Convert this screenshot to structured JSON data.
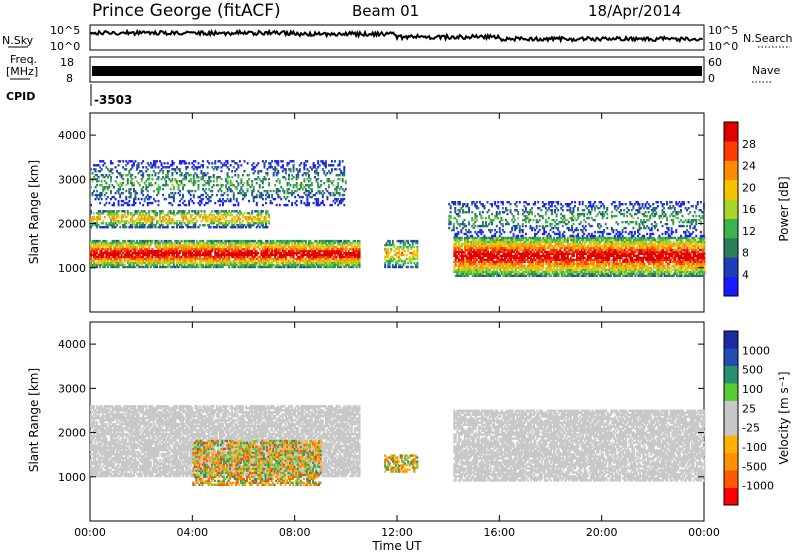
{
  "header": {
    "station": "Prince George (fitACF)",
    "beam": "Beam 01",
    "date": "18/Apr/2014"
  },
  "strips": {
    "nsky_label": "N.Sky",
    "nsky_ticks": [
      "10^5",
      "10^0"
    ],
    "nsearch_label": "N.Search",
    "nsearch_ticks": [
      "10^5",
      "10^0"
    ],
    "freq_label_1": "Freq.",
    "freq_label_2": "[MHz]",
    "freq_ticks": [
      "18",
      "8"
    ],
    "nave_label": "Nave",
    "nave_ticks": [
      "60",
      "0"
    ],
    "cpid_label": "CPID",
    "cpid_value": "-3503"
  },
  "colors": {
    "power": [
      "#1a1aff",
      "#1f3fb8",
      "#2e7d5a",
      "#3cb44b",
      "#aad42b",
      "#f5c400",
      "#ff8c00",
      "#ff3b00",
      "#e00000"
    ],
    "velocity": [
      "#ff0000",
      "#ff5a00",
      "#ff9000",
      "#ffb000",
      "#c8c8c8",
      "#c8c8c8",
      "#55cc33",
      "#2a8f6e",
      "#1f4fb0",
      "#1b2aa0"
    ],
    "ground_scatter": "#c8c8c8"
  },
  "chart_data": [
    {
      "type": "heatmap",
      "panel": "power",
      "ylabel": "Slant Range [km]",
      "xlabel": "",
      "xlim": [
        "00:00",
        "24:00"
      ],
      "ylim": [
        0,
        4500
      ],
      "y_ticks": [
        "1000",
        "2000",
        "3000",
        "4000"
      ],
      "x_ticks": [
        "00:00",
        "04:00",
        "08:00",
        "12:00",
        "16:00",
        "20:00",
        "00:00"
      ],
      "colorbar_label": "Power [dB]",
      "colorbar_ticks": [
        "4",
        "8",
        "12",
        "16",
        "20",
        "24",
        "28"
      ],
      "scatter_regions": [
        {
          "t": [
            0,
            10.5
          ],
          "r": [
            1000,
            1600
          ],
          "level": "strong"
        },
        {
          "t": [
            0,
            7
          ],
          "r": [
            1900,
            2300
          ],
          "level": "medium"
        },
        {
          "t": [
            0,
            10
          ],
          "r": [
            2400,
            3400
          ],
          "level": "weak"
        },
        {
          "t": [
            11.5,
            12.8
          ],
          "r": [
            1000,
            1600
          ],
          "level": "medium"
        },
        {
          "t": [
            14.2,
            24
          ],
          "r": [
            800,
            1700
          ],
          "level": "strong"
        },
        {
          "t": [
            14,
            24
          ],
          "r": [
            1700,
            2500
          ],
          "level": "weak"
        }
      ]
    },
    {
      "type": "heatmap",
      "panel": "velocity",
      "ylabel": "Slant Range [km]",
      "xlabel": "Time UT",
      "xlim": [
        "00:00",
        "24:00"
      ],
      "ylim": [
        0,
        4500
      ],
      "y_ticks": [
        "1000",
        "2000",
        "3000",
        "4000"
      ],
      "x_ticks": [
        "00:00",
        "04:00",
        "08:00",
        "12:00",
        "16:00",
        "20:00",
        "00:00"
      ],
      "colorbar_label": "Velocity [m s⁻¹]",
      "colorbar_ticks": [
        "1000",
        "500",
        "100",
        "25",
        "-25",
        "-100",
        "-500",
        "-1000"
      ],
      "scatter_regions": [
        {
          "t": [
            0,
            10.5
          ],
          "r": [
            1000,
            2600
          ],
          "type": "ground"
        },
        {
          "t": [
            4,
            9
          ],
          "r": [
            800,
            1800
          ],
          "type": "ionospheric"
        },
        {
          "t": [
            11.5,
            12.8
          ],
          "r": [
            1100,
            1500
          ],
          "type": "ionospheric"
        },
        {
          "t": [
            14.2,
            24
          ],
          "r": [
            900,
            2500
          ],
          "type": "ground"
        }
      ]
    }
  ]
}
